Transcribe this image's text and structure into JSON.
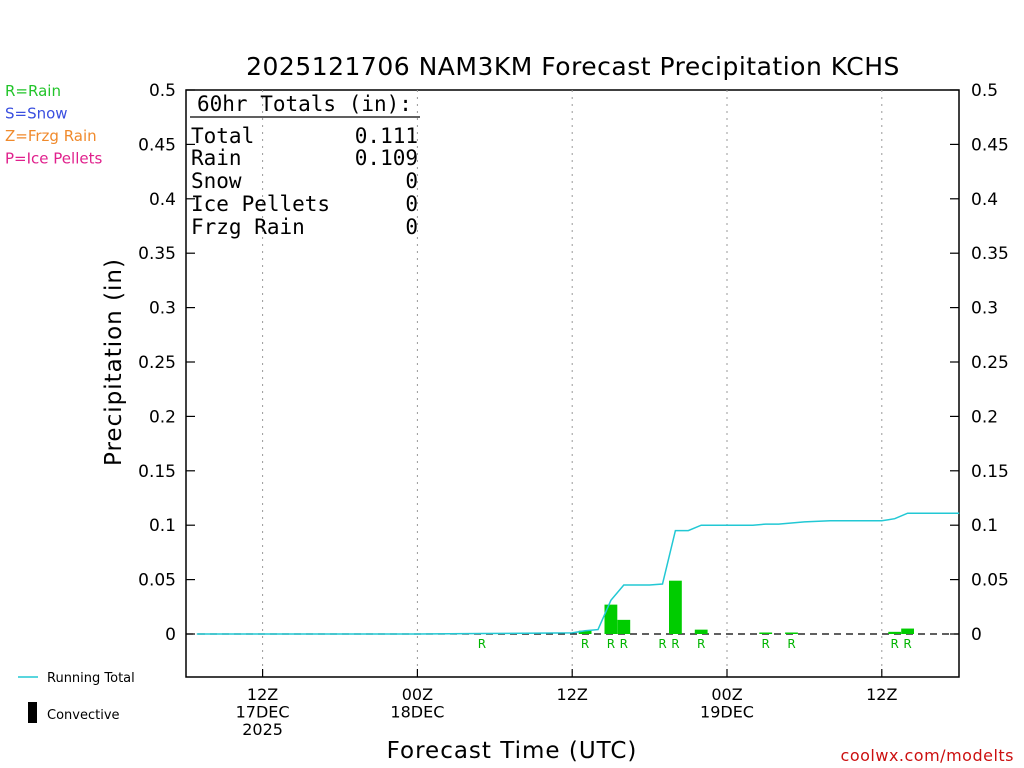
{
  "title": "2025121706 NAM3KM Forecast Precipitation KCHS",
  "ptype_legend": [
    {
      "text": "R=Rain",
      "color": "#22c42a"
    },
    {
      "text": "S=Snow",
      "color": "#3a4fe0"
    },
    {
      "text": "Z=Frzg Rain",
      "color": "#f08a2c"
    },
    {
      "text": "P=Ice Pellets",
      "color": "#e0208c"
    }
  ],
  "totals": {
    "header": "60hr Totals (in):",
    "rows": [
      {
        "label": "Total",
        "value": "0.111"
      },
      {
        "label": "Rain",
        "value": "0.109"
      },
      {
        "label": "Snow",
        "value": "0"
      },
      {
        "label": "Ice Pellets",
        "value": "0"
      },
      {
        "label": "Frzg Rain",
        "value": "0"
      }
    ]
  },
  "legend": {
    "running_total": "Running Total",
    "convective": "Convective"
  },
  "credit": "coolwx.com/modelts",
  "colors": {
    "bar": "#00cc00",
    "running_total": "#22c8d4",
    "rain_label": "#22b82a"
  },
  "chart_data": {
    "type": "bar",
    "title": "2025121706 NAM3KM Forecast Precipitation KCHS",
    "ylabel": "Precipitation (in)",
    "xlabel": "Forecast Time (UTC)",
    "ylim": [
      -0.04,
      0.5
    ],
    "yticks": [
      "0",
      "0.05",
      "0.1",
      "0.15",
      "0.2",
      "0.25",
      "0.3",
      "0.35",
      "0.4",
      "0.45",
      "0.5"
    ],
    "yticks_right": [
      "0",
      "0.05",
      "0.1",
      "0.15",
      "0.2",
      "0.25",
      "0.3",
      "0.35",
      "0.4",
      "0.45",
      "0.5"
    ],
    "xlim_hours": [
      0,
      60
    ],
    "xticks": [
      {
        "hour": 6,
        "labels": [
          "12Z",
          "17DEC",
          "2025"
        ]
      },
      {
        "hour": 18,
        "labels": [
          "00Z",
          "18DEC"
        ]
      },
      {
        "hour": 30,
        "labels": [
          "12Z"
        ]
      },
      {
        "hour": 42,
        "labels": [
          "00Z",
          "19DEC"
        ]
      },
      {
        "hour": 54,
        "labels": [
          "12Z"
        ]
      }
    ],
    "grid_hours": [
      6,
      18,
      30,
      42,
      54
    ],
    "series": [
      {
        "name": "Running Total",
        "type": "line",
        "points": [
          [
            0.9,
            0
          ],
          [
            6,
            0
          ],
          [
            18,
            0
          ],
          [
            23,
            0.0005
          ],
          [
            30,
            0.001
          ],
          [
            31,
            0.003
          ],
          [
            32,
            0.004
          ],
          [
            33,
            0.031
          ],
          [
            34,
            0.045
          ],
          [
            36,
            0.045
          ],
          [
            37,
            0.046
          ],
          [
            38,
            0.095
          ],
          [
            39,
            0.095
          ],
          [
            40,
            0.1
          ],
          [
            43,
            0.1
          ],
          [
            44,
            0.1
          ],
          [
            45,
            0.101
          ],
          [
            46,
            0.101
          ],
          [
            48,
            0.103
          ],
          [
            50,
            0.104
          ],
          [
            53,
            0.104
          ],
          [
            54,
            0.104
          ],
          [
            55,
            0.106
          ],
          [
            56,
            0.111
          ],
          [
            60,
            0.111
          ]
        ]
      },
      {
        "name": "Rain",
        "type": "bar",
        "bars": [
          {
            "hour": 31,
            "value": 0.003
          },
          {
            "hour": 33,
            "value": 0.027
          },
          {
            "hour": 34,
            "value": 0.013
          },
          {
            "hour": 38,
            "value": 0.049
          },
          {
            "hour": 40,
            "value": 0.004
          },
          {
            "hour": 45,
            "value": 0.001
          },
          {
            "hour": 47,
            "value": 0.0005
          },
          {
            "hour": 55,
            "value": 0.002
          },
          {
            "hour": 56,
            "value": 0.005
          }
        ]
      }
    ],
    "ptype_marks": [
      {
        "hour": 23,
        "label": "R"
      },
      {
        "hour": 31,
        "label": "R"
      },
      {
        "hour": 33,
        "label": "R"
      },
      {
        "hour": 34,
        "label": "R"
      },
      {
        "hour": 37,
        "label": "R"
      },
      {
        "hour": 38,
        "label": "R"
      },
      {
        "hour": 40,
        "label": "R"
      },
      {
        "hour": 45,
        "label": "R"
      },
      {
        "hour": 47,
        "label": "R"
      },
      {
        "hour": 55,
        "label": "R"
      },
      {
        "hour": 56,
        "label": "R"
      }
    ]
  }
}
